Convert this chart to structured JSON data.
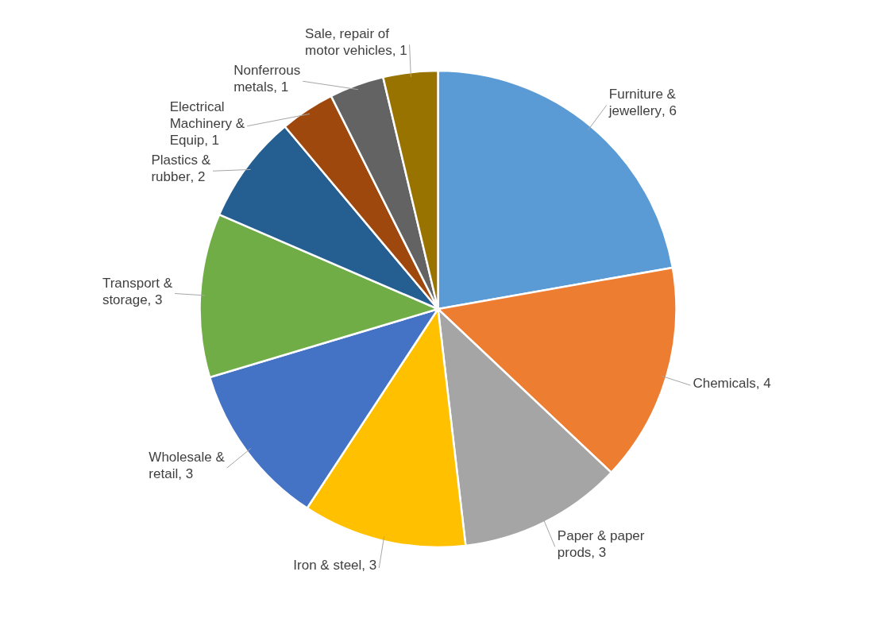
{
  "chart_data": {
    "type": "pie",
    "categories": [
      "Furniture & jewellery",
      "Chemicals",
      "Paper & paper prods",
      "Iron & steel",
      "Wholesale & retail",
      "Transport & storage",
      "Plastics & rubber",
      "Electrical Machinery & Equip",
      "Nonferrous metals",
      "Sale, repair of motor vehicles"
    ],
    "values": [
      6,
      4,
      3,
      3,
      3,
      3,
      2,
      1,
      1,
      1
    ],
    "colors": [
      "#5b9bd5",
      "#ed7d31",
      "#a5a5a5",
      "#ffc000",
      "#4472c4",
      "#70ad47",
      "#255e91",
      "#9e480e",
      "#636363",
      "#997300"
    ],
    "value_labels": [
      ", 6",
      ", 4",
      ", 3",
      ", 3",
      ", 3",
      ", 3",
      ", 2",
      ", 1",
      ", 1",
      ", 1"
    ]
  }
}
